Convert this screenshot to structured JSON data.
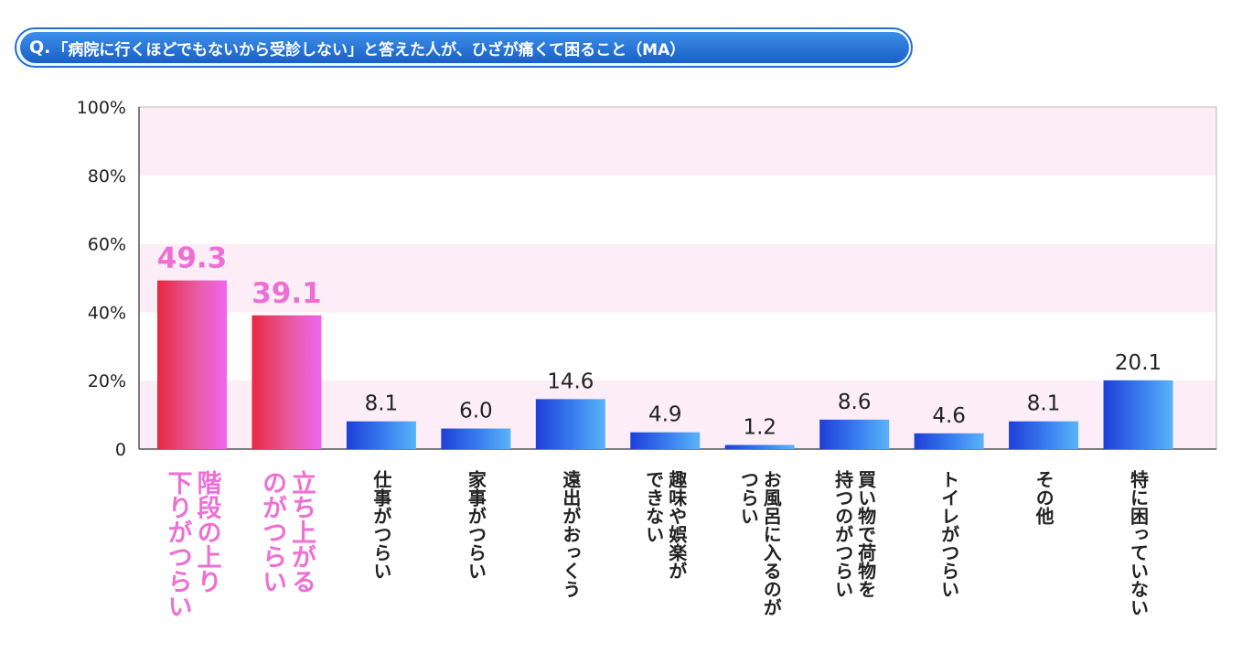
{
  "question": {
    "prefix": "Q.",
    "text": "「病院に行くほどでもないから受診しない」と答えた人が、ひざが痛くて困ること（MA）"
  },
  "colors": {
    "highlight_bar": "#ea3a8c",
    "highlight_label": "#ee6fd4",
    "normal_bar": "#2f6fe6",
    "band": "#fcedf7",
    "question_bg": "#2a78dc"
  },
  "chart_data": {
    "type": "bar",
    "title": "",
    "xlabel": "",
    "ylabel": "",
    "ylim": [
      0,
      100
    ],
    "y_ticks": [
      "0",
      "20%",
      "40%",
      "60%",
      "80%",
      "100%"
    ],
    "categories": [
      [
        "階段の上り",
        "下りがつらい"
      ],
      [
        "立ち上がる",
        "のがつらい"
      ],
      [
        "仕事がつらい"
      ],
      [
        "家事がつらい"
      ],
      [
        "遠出がおっくう"
      ],
      [
        "趣味や娯楽が",
        "できない"
      ],
      [
        "お風呂に入るのが",
        "つらい"
      ],
      [
        "買い物で荷物を",
        "持つのがつらい"
      ],
      [
        "トイレがつらい"
      ],
      [
        "その他"
      ],
      [
        "特に困っていない"
      ]
    ],
    "values": [
      49.3,
      39.1,
      8.1,
      6.0,
      14.6,
      4.9,
      1.2,
      8.6,
      4.6,
      8.1,
      20.1
    ],
    "value_labels": [
      "49.3",
      "39.1",
      "8.1",
      "6.0",
      "14.6",
      "4.9",
      "1.2",
      "8.6",
      "4.6",
      "8.1",
      "20.1"
    ],
    "highlighted": [
      true,
      true,
      false,
      false,
      false,
      false,
      false,
      false,
      false,
      false,
      false
    ],
    "grid": "horizontal bands",
    "legend": "none"
  }
}
